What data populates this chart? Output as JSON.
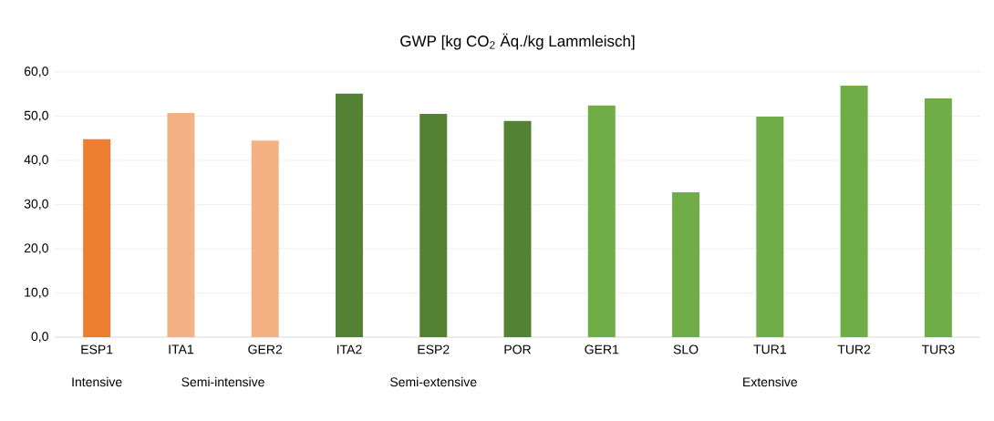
{
  "chart_data": {
    "type": "bar",
    "title": "GWP [kg CO$_{2}$ Äq./kg Lammleisch]",
    "categories": [
      "ESP1",
      "ITA1",
      "GER2",
      "ITA2",
      "ESP2",
      "POR",
      "GER1",
      "SLO",
      "TUR1",
      "TUR2",
      "TUR3"
    ],
    "values": [
      44.8,
      50.7,
      44.5,
      55.1,
      50.5,
      48.9,
      52.4,
      32.8,
      49.9,
      56.9,
      54.0
    ],
    "colors": [
      "#ed7d31",
      "#f4b183",
      "#f4b183",
      "#548235",
      "#548235",
      "#548235",
      "#70ad47",
      "#70ad47",
      "#70ad47",
      "#70ad47",
      "#70ad47"
    ],
    "ylim": [
      0,
      60
    ],
    "yticks": [
      {
        "value": 0,
        "label": "0,0"
      },
      {
        "value": 10,
        "label": "10,0"
      },
      {
        "value": 20,
        "label": "20,0"
      },
      {
        "value": 30,
        "label": "30,0"
      },
      {
        "value": 40,
        "label": "40,0"
      },
      {
        "value": 50,
        "label": "50,0"
      },
      {
        "value": 60,
        "label": "60,0"
      }
    ],
    "grid": "y",
    "annotations": [
      "Intensive",
      "Semi-intensive",
      "Semi-extensive",
      "Extensive"
    ]
  }
}
